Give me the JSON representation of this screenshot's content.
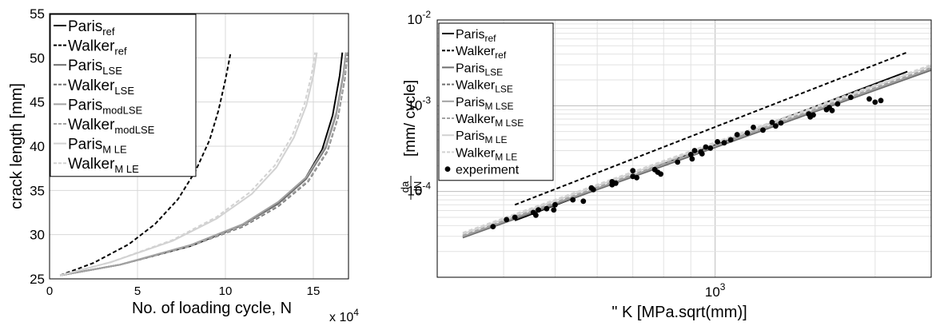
{
  "figure": "crack growth comparison",
  "chart_data": [
    {
      "type": "line",
      "xlabel": "No. of loading cycle, N",
      "x_multiplier": "x 10",
      "x_multiplier_exp": "4",
      "ylabel": "crack length [mm]",
      "xlim": [
        0,
        17
      ],
      "ylim": [
        25,
        55
      ],
      "xticks": [
        "0",
        "5",
        "10",
        "15"
      ],
      "yticks": [
        "25",
        "30",
        "35",
        "40",
        "45",
        "50",
        "55"
      ],
      "grid": true,
      "legend_position": "top-left",
      "legend": [
        {
          "base": "Paris",
          "sub": "ref",
          "color": "#000000",
          "dash": "none"
        },
        {
          "base": "Walker",
          "sub": "ref",
          "color": "#000000",
          "dash": "5,3"
        },
        {
          "base": "Paris",
          "sub": "LSE",
          "color": "#6e6e6e",
          "dash": "none"
        },
        {
          "base": "Walker",
          "sub": "LSE",
          "color": "#6e6e6e",
          "dash": "5,3"
        },
        {
          "base": "Paris",
          "sub": "modLSE",
          "color": "#a2a2a2",
          "dash": "none"
        },
        {
          "base": "Walker",
          "sub": "modLSE",
          "color": "#a2a2a2",
          "dash": "5,3"
        },
        {
          "base": "Paris",
          "sub": "M LE",
          "color": "#d2d2d2",
          "dash": "none"
        },
        {
          "base": "Walker",
          "sub": "M LE",
          "color": "#d2d2d2",
          "dash": "5,3"
        }
      ],
      "series": [
        {
          "name": "Paris_ref",
          "color": "#000000",
          "dash": "none",
          "x": [
            0.6,
            4,
            8,
            11,
            13,
            14.5,
            15.5,
            16.1,
            16.5,
            16.65
          ],
          "y": [
            25.4,
            26.6,
            28.7,
            31.1,
            33.5,
            36.2,
            39.6,
            43.5,
            48,
            50.6
          ]
        },
        {
          "name": "Walker_ref",
          "color": "#000000",
          "dash": "5,3",
          "x": [
            0.6,
            2.5,
            4.5,
            6,
            7.3,
            8.3,
            9.1,
            9.6,
            10,
            10.3
          ],
          "y": [
            25.4,
            26.8,
            28.9,
            31.2,
            34,
            37.2,
            40.7,
            44,
            47.5,
            50.6
          ]
        },
        {
          "name": "Paris_LSE",
          "color": "#6e6e6e",
          "dash": "none",
          "x": [
            0.6,
            4,
            8,
            11,
            13,
            14.6,
            15.7,
            16.3,
            16.7,
            16.85
          ],
          "y": [
            25.4,
            26.6,
            28.8,
            31.1,
            33.5,
            36.3,
            39.8,
            43.6,
            48,
            50.6
          ]
        },
        {
          "name": "Walker_LSE",
          "color": "#6e6e6e",
          "dash": "5,3",
          "x": [
            0.6,
            4,
            8,
            11,
            13,
            14.7,
            15.8,
            16.4,
            16.8,
            16.95
          ],
          "y": [
            25.4,
            26.6,
            28.7,
            30.9,
            33.2,
            36,
            39.4,
            43.2,
            47.7,
            50.6
          ]
        },
        {
          "name": "Paris_modLSE",
          "color": "#a2a2a2",
          "dash": "none",
          "x": [
            0.6,
            4,
            8,
            11,
            13,
            14.6,
            15.7,
            16.3,
            16.7,
            16.85
          ],
          "y": [
            25.4,
            26.6,
            28.8,
            31.2,
            33.7,
            36.5,
            40,
            43.8,
            48.2,
            50.6
          ]
        },
        {
          "name": "Walker_modLSE",
          "color": "#a2a2a2",
          "dash": "5,3",
          "x": [
            0.6,
            4,
            8,
            11,
            13,
            14.7,
            15.8,
            16.4,
            16.8,
            16.95
          ],
          "y": [
            25.4,
            26.6,
            28.7,
            31,
            33.3,
            36.1,
            39.5,
            43.3,
            47.8,
            50.6
          ]
        },
        {
          "name": "Paris_MLE",
          "color": "#d2d2d2",
          "dash": "none",
          "x": [
            0.6,
            3.5,
            7,
            9.5,
            11.5,
            12.9,
            13.9,
            14.6,
            15,
            15.2
          ],
          "y": [
            25.4,
            26.9,
            29.3,
            31.8,
            34.6,
            37.6,
            41,
            44.6,
            48,
            50.6
          ]
        },
        {
          "name": "Walker_MLE",
          "color": "#d2d2d2",
          "dash": "5,3",
          "x": [
            0.6,
            3.5,
            7,
            9.5,
            11.4,
            12.8,
            13.8,
            14.5,
            14.9,
            15.1
          ],
          "y": [
            25.4,
            26.9,
            29.4,
            32,
            34.8,
            37.8,
            41.2,
            44.8,
            48.1,
            50.6
          ]
        }
      ]
    },
    {
      "type": "scatter",
      "xlabel": "\" K  [MPa.sqrt(mm)]",
      "ylabel": "[mm/ cycle]",
      "ylabel_frac_num": "da",
      "ylabel_frac_den": "dN",
      "x_scale": "log",
      "y_scale": "log",
      "xlim": [
        300,
        2550
      ],
      "ylim": [
        1e-05,
        0.01
      ],
      "xticks": [
        {
          "base": "10",
          "exp": "3",
          "value": 1000
        }
      ],
      "yticks": [
        {
          "base": "10",
          "exp": "-4",
          "value": 0.0001
        },
        {
          "base": "10",
          "exp": "-3",
          "value": 0.001
        },
        {
          "base": "10",
          "exp": "-2",
          "value": 0.01
        }
      ],
      "grid": true,
      "legend_position": "top-left",
      "legend": [
        {
          "base": "Paris",
          "sub": "ref",
          "color": "#000000",
          "dash": "none"
        },
        {
          "base": "Walker",
          "sub": "ref",
          "color": "#000000",
          "dash": "5,3"
        },
        {
          "base": "Paris",
          "sub": "LSE",
          "color": "#6e6e6e",
          "dash": "none"
        },
        {
          "base": "Walker",
          "sub": "LSE",
          "color": "#6e6e6e",
          "dash": "5,3"
        },
        {
          "base": "Paris",
          "sub": "M LSE",
          "color": "#a2a2a2",
          "dash": "none"
        },
        {
          "base": "Walker",
          "sub": "M LSE",
          "color": "#a2a2a2",
          "dash": "5,3"
        },
        {
          "base": "Paris",
          "sub": "M LE",
          "color": "#d2d2d2",
          "dash": "none"
        },
        {
          "base": "Walker",
          "sub": "M LE",
          "color": "#d2d2d2",
          "dash": "5,3"
        },
        {
          "base": "experiment",
          "sub": "",
          "marker": "dot",
          "color": "#000000"
        }
      ],
      "series": [
        {
          "name": "Paris_ref",
          "color": "#000000",
          "dash": "none",
          "x": [
            420,
            2300
          ],
          "y": [
            4.6e-05,
            0.0025
          ]
        },
        {
          "name": "Walker_ref",
          "color": "#000000",
          "dash": "5,3",
          "x": [
            420,
            2300
          ],
          "y": [
            7e-05,
            0.0042
          ]
        },
        {
          "name": "Paris_LSE",
          "color": "#6e6e6e",
          "dash": "none",
          "x": [
            335,
            2550
          ],
          "y": [
            2.9e-05,
            0.0026
          ]
        },
        {
          "name": "Walker_LSE",
          "color": "#6e6e6e",
          "dash": "5,3",
          "x": [
            335,
            2550
          ],
          "y": [
            3e-05,
            0.0027
          ]
        },
        {
          "name": "Paris_MLSE",
          "color": "#a2a2a2",
          "dash": "none",
          "x": [
            335,
            2550
          ],
          "y": [
            3e-05,
            0.0027
          ]
        },
        {
          "name": "Walker_MLSE",
          "color": "#a2a2a2",
          "dash": "5,3",
          "x": [
            335,
            2550
          ],
          "y": [
            3.1e-05,
            0.0028
          ]
        },
        {
          "name": "Paris_MLE",
          "color": "#d2d2d2",
          "dash": "none",
          "x": [
            335,
            2550
          ],
          "y": [
            3.2e-05,
            0.0029
          ]
        },
        {
          "name": "Walker_MLE",
          "color": "#d2d2d2",
          "dash": "5,3",
          "x": [
            335,
            2550
          ],
          "y": [
            3.3e-05,
            0.003
          ]
        }
      ],
      "experiment": {
        "x": [
          382,
          405,
          420,
          455,
          460,
          465,
          482,
          497,
          500,
          540,
          565,
          585,
          590,
          640,
          640,
          650,
          700,
          700,
          712,
          770,
          780,
          790,
          850,
          900,
          905,
          915,
          940,
          945,
          960,
          980,
          1010,
          1040,
          1070,
          1100,
          1150,
          1180,
          1230,
          1280,
          1300,
          1330,
          1500,
          1510,
          1530,
          1620,
          1640,
          1660,
          1700,
          1800,
          1950,
          2000,
          2050
        ],
        "y": [
          3.9e-05,
          4.7e-05,
          5e-05,
          5.7e-05,
          5.3e-05,
          6.1e-05,
          6.3e-05,
          6.1e-05,
          7e-05,
          8e-05,
          7.7e-05,
          0.00011,
          0.000105,
          0.00012,
          0.00013,
          0.000125,
          0.00015,
          0.000175,
          0.000145,
          0.00018,
          0.000168,
          0.00016,
          0.00022,
          0.00027,
          0.00024,
          0.0003,
          0.00029,
          0.000275,
          0.00033,
          0.00032,
          0.00038,
          0.00037,
          0.0004,
          0.00046,
          0.00048,
          0.00056,
          0.00052,
          0.00064,
          0.00058,
          0.00063,
          0.0008,
          0.00074,
          0.00078,
          0.0009,
          0.00095,
          0.00088,
          0.00105,
          0.00125,
          0.0012,
          0.0011,
          0.00115
        ]
      }
    }
  ]
}
